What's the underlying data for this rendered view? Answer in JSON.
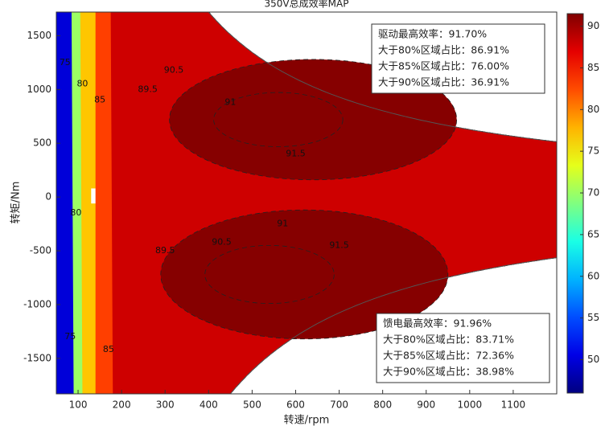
{
  "chart_data": {
    "type": "contour",
    "title": "350V总成效率MAP",
    "x_label": "转速/rpm",
    "y_label": "转矩/Nm",
    "xlim": [
      50,
      1200
    ],
    "ylim": [
      -1830,
      1720
    ],
    "xticks": [
      100,
      200,
      300,
      400,
      500,
      600,
      700,
      800,
      900,
      1000,
      1100
    ],
    "yticks": [
      -1500,
      -1000,
      -500,
      0,
      500,
      1000,
      1500
    ],
    "clim": [
      46,
      91.5
    ],
    "cticks": [
      50,
      55,
      60,
      65,
      70,
      75,
      80,
      85,
      90
    ],
    "zones": [
      50,
      70,
      77,
      83,
      88,
      91.2
    ],
    "contour_levels": [
      75,
      80,
      85,
      89.5,
      90.5,
      91,
      91.5
    ],
    "annotations": [
      [
        "驱动最高效率：91.70%",
        "大于80%区域占比：86.91%",
        "大于85%区域占比：76.00%",
        "大于90%区域占比：36.91%"
      ],
      [
        "馈电最高效率：91.96%",
        "大于80%区域占比：83.71%",
        "大于85%区域占比：72.36%",
        "大于90%区域占比：38.98%"
      ]
    ]
  }
}
